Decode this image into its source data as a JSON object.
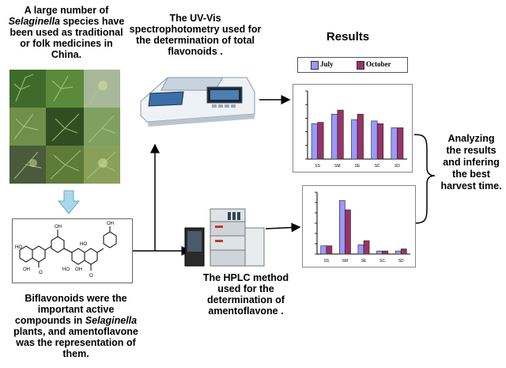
{
  "texts": {
    "selaginella_intro": [
      "A large number of ",
      "Selaginella",
      " species have been used  as traditional or folk medicines in China."
    ],
    "uvvis_caption": "The UV-Vis spectrophotometry used for the determination of total flavonoids .",
    "results_title": "Results",
    "analysis_caption": "Analyzing the results and infering the best harvest time.",
    "hplc_caption": "The HPLC method used for the determination of amentoflavone .",
    "biflavonoid_caption": [
      "Biflavonoids were the important active compounds in ",
      "Selaginella",
      " plants, and amentoflavone was the representation of them."
    ]
  },
  "colors": {
    "july": "#9999ff",
    "october": "#993366",
    "arrow_blue": "#a9d8ea",
    "line": "#000000"
  },
  "chart_data": [
    {
      "type": "bar",
      "legend": [
        "July",
        "October"
      ],
      "legend_placement": "top",
      "categories": [
        "SS",
        "SM",
        "SE",
        "SC",
        "SD"
      ],
      "series": [
        {
          "name": "July",
          "values": [
            2.6,
            3.3,
            2.9,
            2.8,
            2.3
          ]
        },
        {
          "name": "October",
          "values": [
            2.7,
            3.6,
            3.3,
            2.6,
            2.3
          ]
        }
      ],
      "ylim": [
        0,
        5
      ]
    },
    {
      "type": "bar",
      "categories": [
        "SS",
        "SM",
        "SE",
        "SC",
        "SD"
      ],
      "series": [
        {
          "name": "July",
          "values": [
            0.8,
            5.2,
            0.9,
            0.3,
            0.3
          ]
        },
        {
          "name": "October",
          "values": [
            0.8,
            4.3,
            1.3,
            0.3,
            0.5
          ]
        }
      ],
      "ylim": [
        0,
        6
      ]
    }
  ]
}
